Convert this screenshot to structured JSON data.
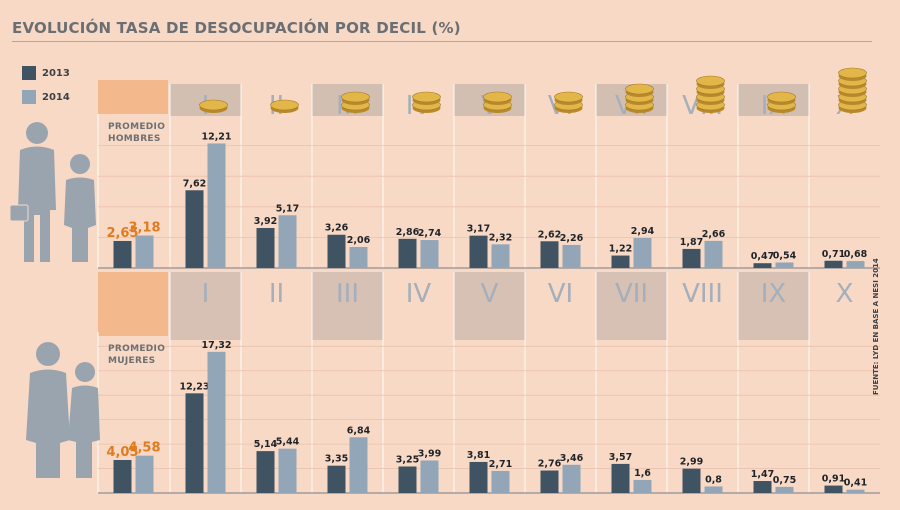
{
  "title": "EVOLUCIÓN TASA DE DESOCUPACIÓN POR DECIL (%)",
  "legend": [
    {
      "label": "2013",
      "color": "#3f5363"
    },
    {
      "label": "2014",
      "color": "#92a6b8"
    }
  ],
  "source": "FUENTE: LYD EN BASE A NESI 2014",
  "promedio_hombres": "PROMEDIO HOMBRES",
  "promedio_mujeres": "PROMEDIO MUJERES",
  "chart_data": [
    {
      "type": "bar",
      "title": "",
      "categories": [
        "PROMEDIO HOMBRES",
        "I",
        "II",
        "III",
        "IV",
        "V",
        "VI",
        "VII",
        "VIII",
        "IX",
        "X"
      ],
      "series": [
        {
          "name": "2013",
          "values": [
            2.65,
            7.62,
            3.92,
            3.26,
            2.86,
            3.17,
            2.62,
            1.22,
            1.87,
            0.47,
            0.71
          ],
          "labels": [
            "2,65",
            "7,62",
            "3,92",
            "3,26",
            "2,86",
            "3,17",
            "2,62",
            "1,22",
            "1,87",
            "0,47",
            "0,71"
          ]
        },
        {
          "name": "2014",
          "values": [
            3.18,
            12.21,
            5.17,
            2.06,
            2.74,
            2.32,
            2.26,
            2.94,
            2.66,
            0.54,
            0.68
          ],
          "labels": [
            "3,18",
            "12,21",
            "5,17",
            "2,06",
            "2,74",
            "2,32",
            "2,26",
            "2,94",
            "2,66",
            "0,54",
            "0,68"
          ]
        }
      ]
    },
    {
      "type": "bar",
      "title": "",
      "categories": [
        "PROMEDIO MUJERES",
        "I",
        "II",
        "III",
        "IV",
        "V",
        "VI",
        "VII",
        "VIII",
        "IX",
        "X"
      ],
      "series": [
        {
          "name": "2013",
          "values": [
            4.05,
            12.23,
            5.14,
            3.35,
            3.25,
            3.81,
            2.76,
            3.57,
            2.99,
            1.47,
            0.91
          ],
          "labels": [
            "4,05",
            "12,23",
            "5,14",
            "3,35",
            "3,25",
            "3,81",
            "2,76",
            "3,57",
            "2,99",
            "1,47",
            "0,91"
          ]
        },
        {
          "name": "2014",
          "values": [
            4.58,
            17.32,
            5.44,
            6.84,
            3.99,
            2.71,
            3.46,
            1.6,
            0.8,
            0.75,
            0.41
          ],
          "labels": [
            "4,58",
            "17,32",
            "5,44",
            "6,84",
            "3,99",
            "2,71",
            "3,46",
            "1,6",
            "0,8",
            "0,75",
            "0,41"
          ]
        }
      ]
    }
  ],
  "deciles": [
    "I",
    "II",
    "III",
    "IV",
    "V",
    "VI",
    "VII",
    "VIII",
    "IX",
    "X"
  ],
  "coin_icon": "coin-stack-icon",
  "man_icon": "man-silhouette-icon",
  "woman_icon": "woman-silhouette-icon",
  "average_label_color": "#e07b1f"
}
